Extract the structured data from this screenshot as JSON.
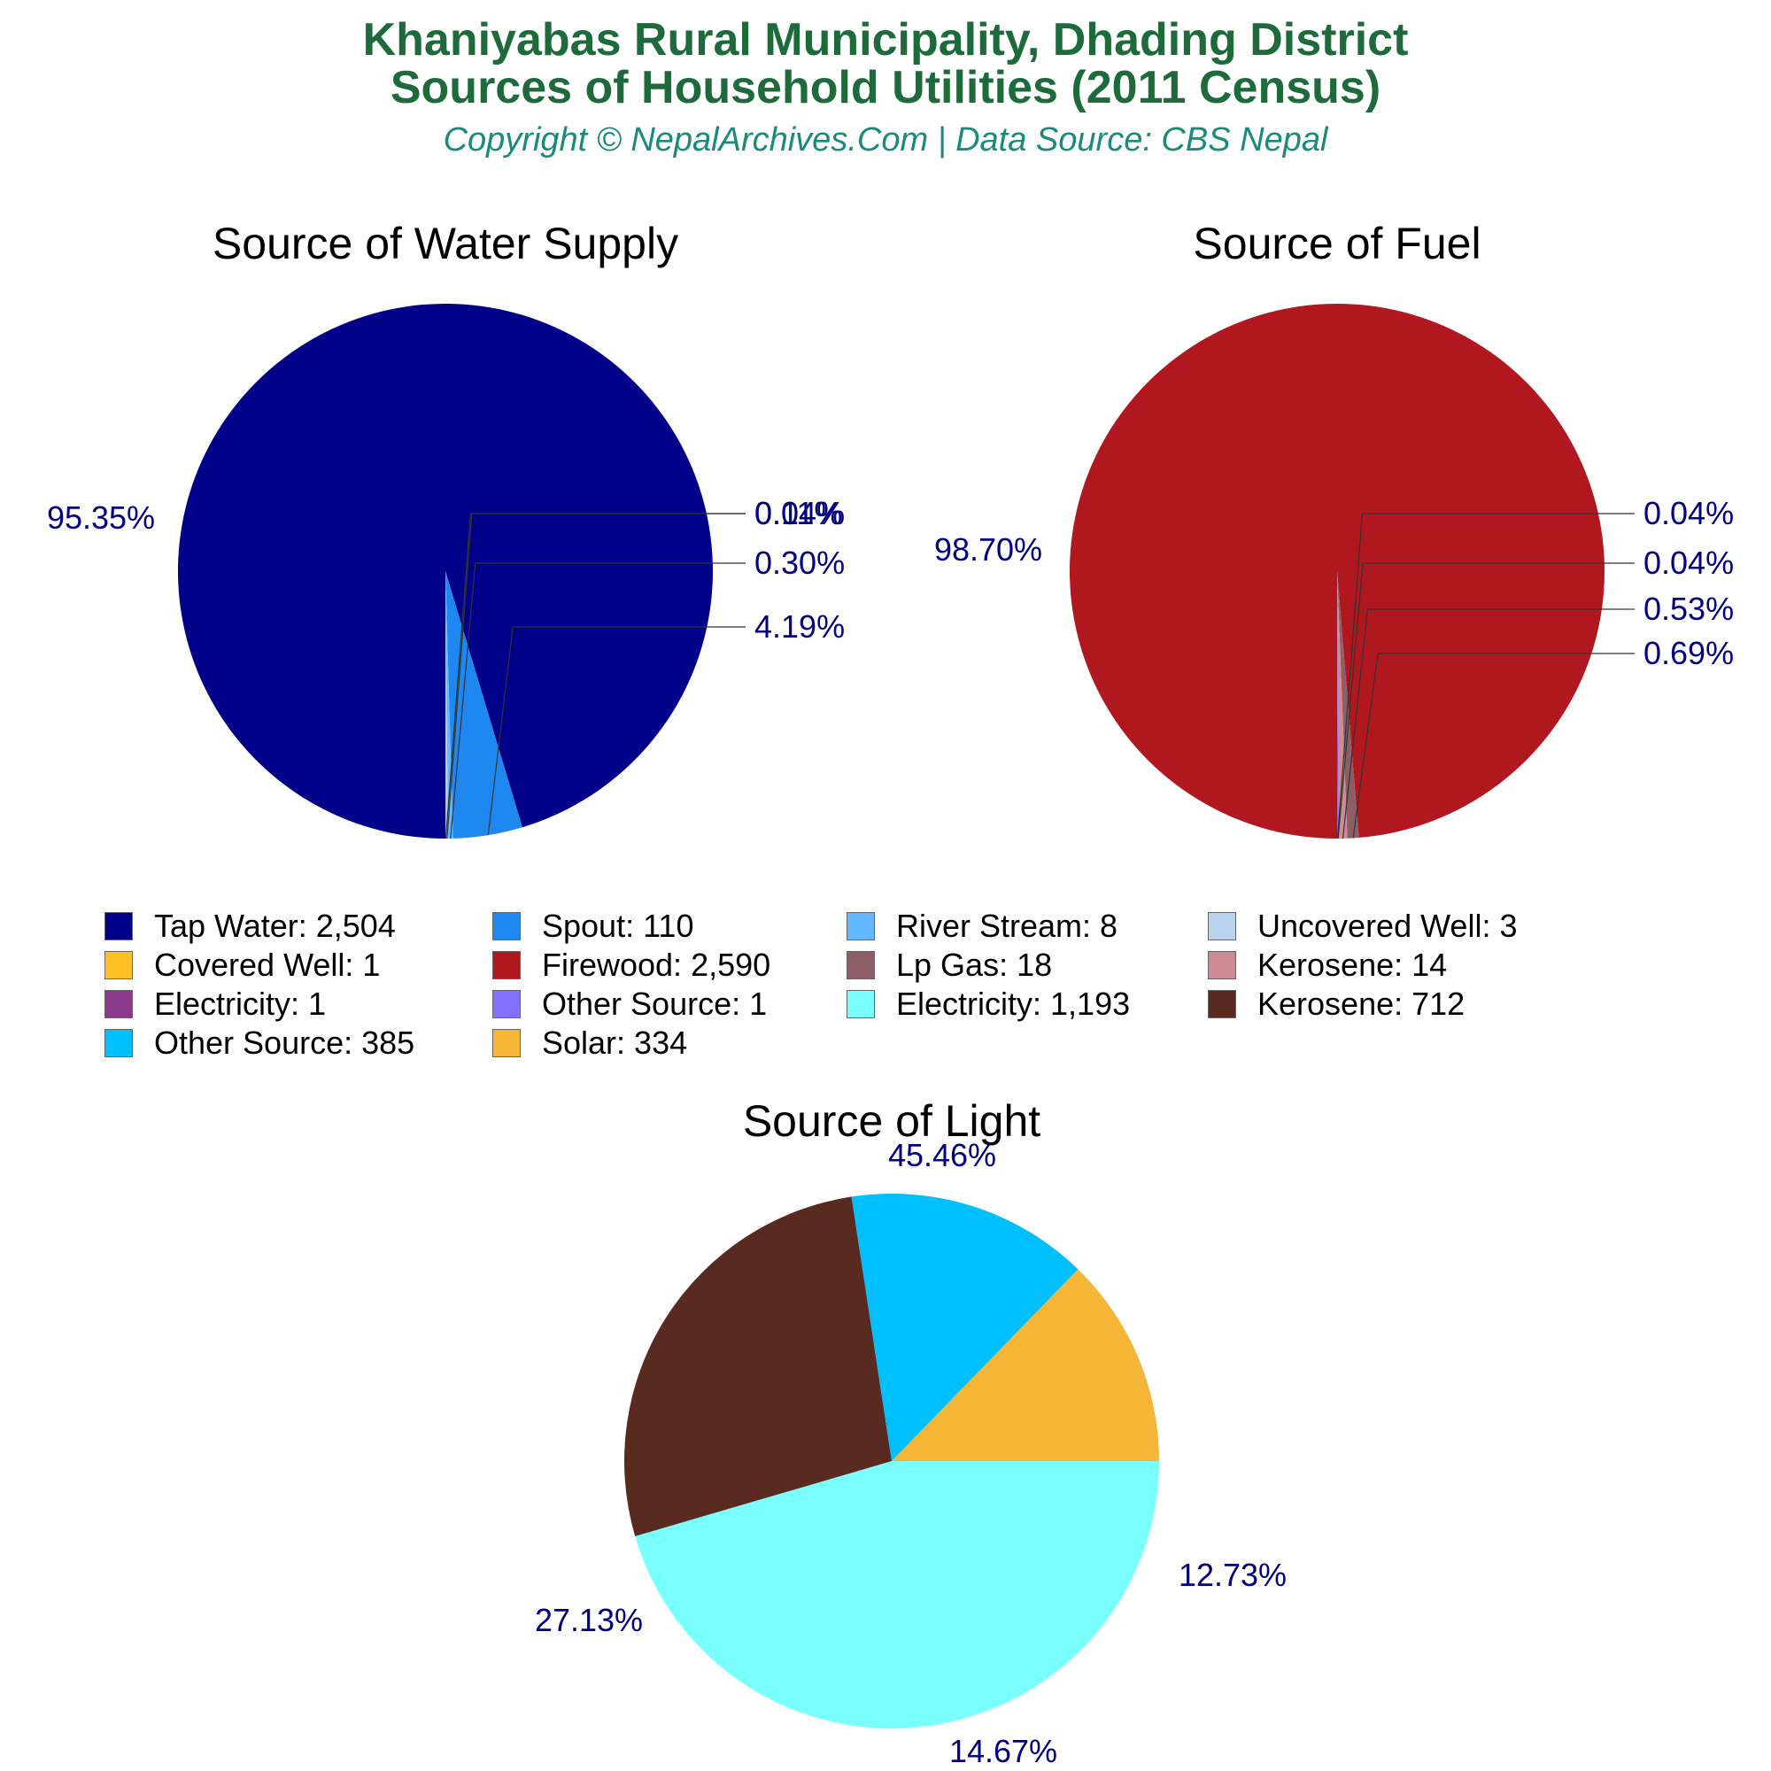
{
  "header": {
    "title_line1": "Khaniyabas Rural Municipality, Dhading District",
    "title_line2": "Sources of Household Utilities (2011 Census)",
    "copyright": "Copyright © NepalArchives.Com | Data Source: CBS Nepal"
  },
  "chart_data": [
    {
      "type": "pie",
      "title": "Source of Water Supply",
      "categories": [
        "Tap Water",
        "Spout",
        "River Stream",
        "Uncovered Well",
        "Covered Well"
      ],
      "values": [
        2504,
        110,
        8,
        3,
        1
      ],
      "percent_labels": [
        "95.35%",
        "4.19%",
        "0.30%",
        "0.11%",
        "0.04%"
      ],
      "colors": [
        "#000088",
        "#1e87f0",
        "#63b8ff",
        "#b9d3ee",
        "#ffc125"
      ]
    },
    {
      "type": "pie",
      "title": "Source of Fuel",
      "categories": [
        "Firewood",
        "Lp Gas",
        "Kerosene",
        "Electricity",
        "Other Source"
      ],
      "values": [
        2590,
        18,
        14,
        1,
        1
      ],
      "percent_labels": [
        "98.70%",
        "0.69%",
        "0.53%",
        "0.04%",
        "0.04%"
      ],
      "colors": [
        "#b0171f",
        "#8b5f65",
        "#cd8c95",
        "#8b3a8b",
        "#8470ff"
      ]
    },
    {
      "type": "pie",
      "title": "Source of Light",
      "categories": [
        "Electricity",
        "Kerosene",
        "Other Source",
        "Solar"
      ],
      "values": [
        1193,
        712,
        385,
        334
      ],
      "percent_labels": [
        "45.46%",
        "27.13%",
        "14.67%",
        "12.73%"
      ],
      "colors": [
        "#7affff",
        "#582a20",
        "#00bfff",
        "#f5b536"
      ]
    }
  ],
  "legend": [
    {
      "label": "Tap Water: 2,504",
      "color": "#000088"
    },
    {
      "label": "Spout: 110",
      "color": "#1e87f0"
    },
    {
      "label": "River Stream: 8",
      "color": "#63b8ff"
    },
    {
      "label": "Uncovered Well: 3",
      "color": "#b9d3ee"
    },
    {
      "label": "Covered Well: 1",
      "color": "#ffc125"
    },
    {
      "label": "Firewood: 2,590",
      "color": "#b0171f"
    },
    {
      "label": "Lp Gas: 18",
      "color": "#8b5f65"
    },
    {
      "label": "Kerosene: 14",
      "color": "#cd8c95"
    },
    {
      "label": "Electricity: 1",
      "color": "#8b3a8b"
    },
    {
      "label": "Other Source: 1",
      "color": "#8470ff"
    },
    {
      "label": "Electricity: 1,193",
      "color": "#7affff"
    },
    {
      "label": "Kerosene: 712",
      "color": "#582a20"
    },
    {
      "label": "Other Source: 385",
      "color": "#00bfff"
    },
    {
      "label": "Solar: 334",
      "color": "#f5b536"
    }
  ]
}
